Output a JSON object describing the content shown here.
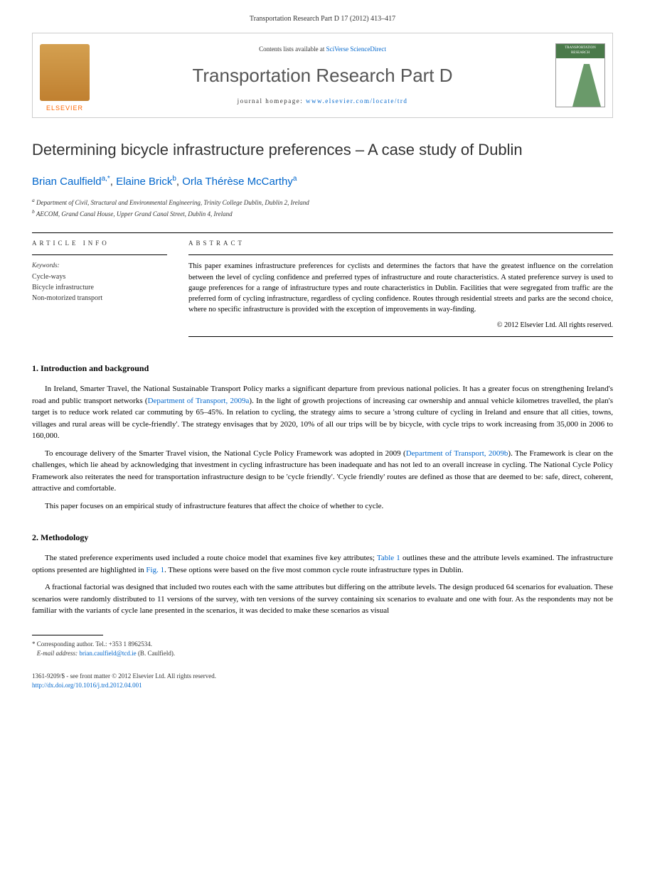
{
  "header": {
    "citation": "Transportation Research Part D 17 (2012) 413–417"
  },
  "banner": {
    "publisher_name": "ELSEVIER",
    "contents_prefix": "Contents lists available at ",
    "contents_link": "SciVerse ScienceDirect",
    "journal_title": "Transportation Research Part D",
    "homepage_prefix": "journal homepage: ",
    "homepage_url": "www.elsevier.com/locate/trd",
    "cover_label": "TRANSPORTATION RESEARCH"
  },
  "article": {
    "title": "Determining bicycle infrastructure preferences – A case study of Dublin",
    "authors": [
      {
        "name": "Brian Caulfield",
        "marks": "a,*"
      },
      {
        "name": "Elaine Brick",
        "marks": "b"
      },
      {
        "name": "Orla Thérèse McCarthy",
        "marks": "a"
      }
    ],
    "affiliations": [
      "Department of Civil, Structural and Environmental Engineering, Trinity College Dublin, Dublin 2, Ireland",
      "AECOM, Grand Canal House, Upper Grand Canal Street, Dublin 4, Ireland"
    ]
  },
  "info": {
    "label": "ARTICLE INFO",
    "keywords_label": "Keywords:",
    "keywords": [
      "Cycle-ways",
      "Bicycle infrastructure",
      "Non-motorized transport"
    ]
  },
  "abstract": {
    "label": "ABSTRACT",
    "text": "This paper examines infrastructure preferences for cyclists and determines the factors that have the greatest influence on the correlation between the level of cycling confidence and preferred types of infrastructure and route characteristics. A stated preference survey is used to gauge preferences for a range of infrastructure types and route characteristics in Dublin. Facilities that were segregated from traffic are the preferred form of cycling infrastructure, regardless of cycling confidence. Routes through residential streets and parks are the second choice, where no specific infrastructure is provided with the exception of improvements in way-finding.",
    "copyright": "© 2012 Elsevier Ltd. All rights reserved."
  },
  "sections": {
    "s1": {
      "heading": "1. Introduction and background",
      "p1_a": "In Ireland, Smarter Travel, the National Sustainable Transport Policy marks a significant departure from previous national policies. It has a greater focus on strengthening Ireland's road and public transport networks (",
      "p1_link1": "Department of Transport, 2009a",
      "p1_b": "). In the light of growth projections of increasing car ownership and annual vehicle kilometres travelled, the plan's target is to reduce work related car commuting by 65–45%. In relation to cycling, the strategy aims to secure a 'strong culture of cycling in Ireland and ensure that all cities, towns, villages and rural areas will be cycle-friendly'. The strategy envisages that by 2020, 10% of all our trips will be by bicycle, with cycle trips to work increasing from 35,000 in 2006 to 160,000.",
      "p2_a": "To encourage delivery of the Smarter Travel vision, the National Cycle Policy Framework was adopted in 2009 (",
      "p2_link1": "Department of Transport, 2009b",
      "p2_b": "). The Framework is clear on the challenges, which lie ahead by acknowledging that investment in cycling infrastructure has been inadequate and has not led to an overall increase in cycling. The National Cycle Policy Framework also reiterates the need for transportation infrastructure design to be 'cycle friendly'. 'Cycle friendly' routes are defined as those that are deemed to be: safe, direct, coherent, attractive and comfortable.",
      "p3": "This paper focuses on an empirical study of infrastructure features that affect the choice of whether to cycle."
    },
    "s2": {
      "heading": "2. Methodology",
      "p1_a": "The stated preference experiments used included a route choice model that examines five key attributes; ",
      "p1_link1": "Table 1",
      "p1_b": " outlines these and the attribute levels examined. The infrastructure options presented are highlighted in ",
      "p1_link2": "Fig. 1",
      "p1_c": ". These options were based on the five most common cycle route infrastructure types in Dublin.",
      "p2": "A fractional factorial was designed that included two routes each with the same attributes but differing on the attribute levels. The design produced 64 scenarios for evaluation. These scenarios were randomly distributed to 11 versions of the survey, with ten versions of the survey containing six scenarios to evaluate and one with four. As the respondents may not be familiar with the variants of cycle lane presented in the scenarios, it was decided to make these scenarios as visual"
    }
  },
  "footnote": {
    "corr_label": "* Corresponding author. Tel.: +353 1 8962534.",
    "email_label": "E-mail address: ",
    "email": "brian.caulfield@tcd.ie",
    "email_suffix": " (B. Caulfield)."
  },
  "bottom": {
    "issn_line": "1361-9209/$ - see front matter © 2012 Elsevier Ltd. All rights reserved.",
    "doi": "http://dx.doi.org/10.1016/j.trd.2012.04.001"
  }
}
